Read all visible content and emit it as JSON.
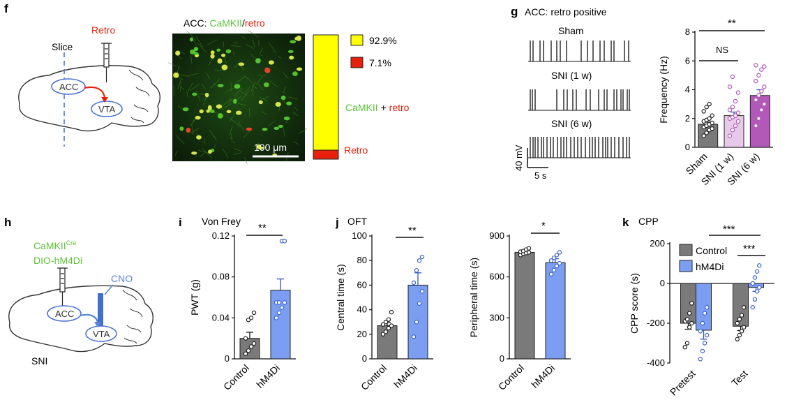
{
  "panels": {
    "f": {
      "letter": "f",
      "slice_label": "Slice",
      "retro_label": "Retro",
      "acc_label": "ACC",
      "vta_label": "VTA",
      "image_title_prefix": "ACC: ",
      "image_title_camk": "CaMKII",
      "image_title_sep": "/",
      "image_title_retro": "retro",
      "scale_bar_label": "100 μm",
      "legend_high": "92.9%",
      "legend_low": "7.1%",
      "coloc_camk": "CaMKII",
      "coloc_plus": " + ",
      "coloc_retro": "retro",
      "retro_only": "Retro",
      "colors": {
        "yellow": "#ffff00",
        "red": "#e8200c",
        "green": "#5ec23a",
        "retro_red": "#e8200c"
      }
    },
    "g": {
      "letter": "g",
      "title": "ACC: retro positive",
      "traces": [
        "Sham",
        "SNI (1 w)",
        "SNI (6 w)"
      ],
      "scale_v": "40 mV",
      "scale_t": "5 s",
      "sig_top": "**",
      "sig_ns": "NS"
    },
    "h": {
      "letter": "h",
      "camk_label": "CaMKII",
      "cre_sup": "Cre",
      "dio_label": "DIO-hM4Di",
      "cno_label": "CNO",
      "acc_label": "ACC",
      "vta_label": "VTA",
      "sni_label": "SNI",
      "colors": {
        "green": "#5ec23a",
        "blue": "#5b86d4"
      }
    },
    "i": {
      "letter": "i",
      "title": "Von Frey",
      "sig": "**"
    },
    "j": {
      "letter": "j",
      "title": "OFT",
      "sig_left": "**",
      "sig_right": "*"
    },
    "k": {
      "letter": "k",
      "title": "CPP",
      "sig_top": "***",
      "sig_test": "***",
      "legend": [
        "Control",
        "hM4Di"
      ]
    }
  },
  "chart_data": [
    {
      "id": "g-frequency",
      "type": "bar",
      "categories": [
        "Sham",
        "SNI (1 w)",
        "SNI (6 w)"
      ],
      "values": [
        1.6,
        2.2,
        3.6
      ],
      "errors": [
        0.15,
        0.25,
        0.4
      ],
      "points": [
        [
          0.8,
          1.0,
          1.2,
          1.3,
          1.4,
          1.5,
          1.6,
          1.7,
          1.8,
          1.9,
          2.0,
          2.2,
          2.5,
          2.8,
          3.0
        ],
        [
          0.8,
          1.2,
          1.5,
          1.8,
          2.0,
          2.1,
          2.2,
          2.4,
          2.6,
          2.8,
          3.2,
          3.8,
          4.2,
          4.9
        ],
        [
          1.5,
          2.0,
          2.6,
          3.0,
          3.3,
          3.6,
          3.9,
          4.2,
          4.6,
          5.0,
          5.4,
          5.6,
          5.7
        ]
      ],
      "colors": [
        "#7a7a7a",
        "#e9c9e9",
        "#b158b9"
      ],
      "point_colors": [
        "#222222",
        "#b158b9",
        "#b158b9"
      ],
      "ylabel": "Frequency (Hz)",
      "yticks": [
        0,
        2,
        4,
        6,
        8
      ],
      "ylim": [
        0,
        8
      ]
    },
    {
      "id": "i-pwt",
      "type": "bar",
      "categories": [
        "Control",
        "hM4Di"
      ],
      "values": [
        0.02,
        0.067
      ],
      "errors": [
        0.006,
        0.011
      ],
      "points": [
        [
          0.005,
          0.008,
          0.012,
          0.015,
          0.02,
          0.038,
          0.04,
          0.045
        ],
        [
          0.04,
          0.045,
          0.05,
          0.055,
          0.055,
          0.055,
          0.115,
          0.115
        ]
      ],
      "colors": [
        "#7a7a7a",
        "#7b9ef2"
      ],
      "point_colors": [
        "#222222",
        "#3a62d0"
      ],
      "ylabel": "PWT (g)",
      "yticks": [
        0,
        0.04,
        0.08,
        0.12
      ],
      "ytick_labels": [
        "0",
        "0.04",
        "0.08",
        "0.12"
      ],
      "ylim": [
        0,
        0.12
      ]
    },
    {
      "id": "j-central",
      "type": "bar",
      "categories": [
        "Control",
        "hM4Di"
      ],
      "values": [
        27,
        60
      ],
      "errors": [
        2.5,
        10
      ],
      "points": [
        [
          20,
          22,
          25,
          27,
          28,
          30,
          32,
          38
        ],
        [
          18,
          30,
          45,
          55,
          62,
          72,
          80,
          83
        ]
      ],
      "colors": [
        "#7a7a7a",
        "#7b9ef2"
      ],
      "point_colors": [
        "#222222",
        "#3a62d0"
      ],
      "ylabel": "Central time (s)",
      "yticks": [
        0,
        20,
        40,
        60,
        80,
        100
      ],
      "ylim": [
        0,
        100
      ]
    },
    {
      "id": "j-peripheral",
      "type": "bar",
      "categories": [
        "Control",
        "hM4Di"
      ],
      "values": [
        780,
        705
      ],
      "errors": [
        15,
        28
      ],
      "points": [
        [
          760,
          770,
          775,
          780,
          785,
          790,
          800,
          810
        ],
        [
          620,
          650,
          680,
          700,
          720,
          740,
          760,
          780
        ]
      ],
      "colors": [
        "#7a7a7a",
        "#7b9ef2"
      ],
      "point_colors": [
        "#222222",
        "#3a62d0"
      ],
      "ylabel": "Peripheral time (s)",
      "yticks": [
        0,
        300,
        600,
        900
      ],
      "ylim": [
        0,
        900
      ]
    },
    {
      "id": "k-cpp",
      "type": "bar",
      "categories": [
        "Pretest",
        "Test"
      ],
      "series": [
        {
          "name": "Control",
          "values": [
            -200,
            -215
          ],
          "errors": [
            30,
            22
          ],
          "points": [
            [
              -320,
              -300,
              -220,
              -200,
              -190,
              -180,
              -150,
              -100
            ],
            [
              -280,
              -260,
              -240,
              -220,
              -200,
              -180,
              -160,
              -120
            ]
          ]
        },
        {
          "name": "hM4Di",
          "values": [
            -235,
            -20
          ],
          "errors": [
            45,
            20
          ],
          "points": [
            [
              -380,
              -340,
              -300,
              -260,
              -240,
              -200,
              -150,
              -120
            ],
            [
              -120,
              -80,
              -40,
              -20,
              0,
              30,
              60,
              90
            ]
          ]
        }
      ],
      "colors": [
        "#7a7a7a",
        "#7b9ef2"
      ],
      "point_colors": [
        "#222222",
        "#3a62d0"
      ],
      "ylabel": "CPP score (s)",
      "yticks": [
        -400,
        -200,
        0,
        200
      ],
      "ylim": [
        -400,
        200
      ]
    }
  ]
}
